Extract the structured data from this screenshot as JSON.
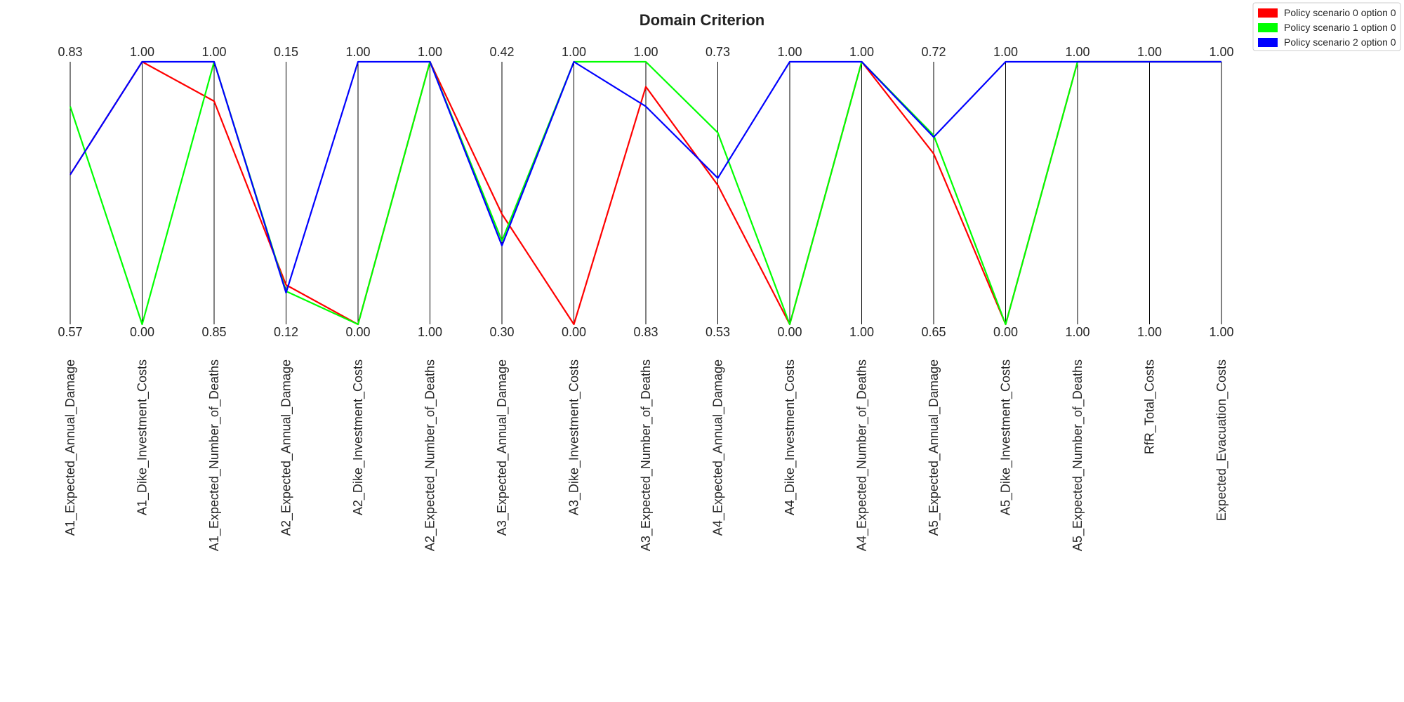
{
  "chart_data": {
    "type": "parallel_coordinates",
    "title": "Domain Criterion",
    "axes": [
      {
        "label": "A1_Expected_Annual_Damage",
        "top": "0.83",
        "bottom": "0.57"
      },
      {
        "label": "A1_Dike_Investment_Costs",
        "top": "1.00",
        "bottom": "0.00"
      },
      {
        "label": "A1_Expected_Number_of_Deaths",
        "top": "1.00",
        "bottom": "0.85"
      },
      {
        "label": "A2_Expected_Annual_Damage",
        "top": "0.15",
        "bottom": "0.12"
      },
      {
        "label": "A2_Dike_Investment_Costs",
        "top": "1.00",
        "bottom": "0.00"
      },
      {
        "label": "A2_Expected_Number_of_Deaths",
        "top": "1.00",
        "bottom": "1.00"
      },
      {
        "label": "A3_Expected_Annual_Damage",
        "top": "0.42",
        "bottom": "0.30"
      },
      {
        "label": "A3_Dike_Investment_Costs",
        "top": "1.00",
        "bottom": "0.00"
      },
      {
        "label": "A3_Expected_Number_of_Deaths",
        "top": "1.00",
        "bottom": "0.83"
      },
      {
        "label": "A4_Expected_Annual_Damage",
        "top": "0.73",
        "bottom": "0.53"
      },
      {
        "label": "A4_Dike_Investment_Costs",
        "top": "1.00",
        "bottom": "0.00"
      },
      {
        "label": "A4_Expected_Number_of_Deaths",
        "top": "1.00",
        "bottom": "1.00"
      },
      {
        "label": "A5_Expected_Annual_Damage",
        "top": "0.72",
        "bottom": "0.65"
      },
      {
        "label": "A5_Dike_Investment_Costs",
        "top": "1.00",
        "bottom": "0.00"
      },
      {
        "label": "A5_Expected_Number_of_Deaths",
        "top": "1.00",
        "bottom": "1.00"
      },
      {
        "label": "RfR_Total_Costs",
        "top": "1.00",
        "bottom": "1.00"
      },
      {
        "label": "Expected_Evacuation_Costs",
        "top": "1.00",
        "bottom": "1.00"
      }
    ],
    "series": [
      {
        "name": "Policy scenario 0 option 0",
        "color": "#ff0000",
        "values": [
          0.57,
          1.0,
          0.85,
          0.15,
          0.0,
          1.0,
          0.42,
          0.0,
          0.905,
          0.53,
          0.0,
          1.0,
          0.65,
          0.0,
          1.0,
          1.0,
          1.0
        ]
      },
      {
        "name": "Policy scenario 1 option 0",
        "color": "#00ff00",
        "values": [
          0.83,
          0.0,
          1.0,
          0.126,
          0.0,
          1.0,
          0.318,
          1.0,
          1.0,
          0.73,
          0.0,
          1.0,
          0.72,
          0.0,
          1.0,
          1.0,
          1.0
        ]
      },
      {
        "name": "Policy scenario 2 option 0",
        "color": "#0000ff",
        "values": [
          0.57,
          1.0,
          1.0,
          0.12,
          1.0,
          1.0,
          0.3,
          1.0,
          0.83,
          0.557,
          1.0,
          1.0,
          0.713,
          1.0,
          1.0,
          1.0,
          1.0
        ]
      }
    ],
    "legend": "top-right"
  }
}
